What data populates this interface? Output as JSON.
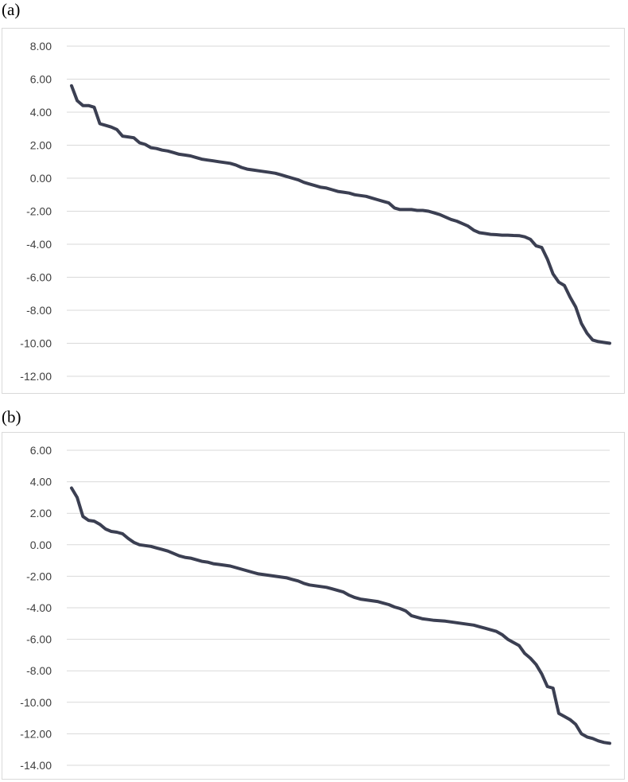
{
  "chart_data": [
    {
      "panel_label": "(a)",
      "type": "line",
      "yticks": [
        "8.00",
        "6.00",
        "4.00",
        "2.00",
        "0.00",
        "-2.00",
        "-4.00",
        "-6.00",
        "-8.00",
        "-10.00",
        "-12.00"
      ],
      "ylim": [
        -12,
        8
      ],
      "grid": true,
      "series": [
        {
          "color": "#3b3f52",
          "values": [
            5.6,
            4.7,
            4.4,
            4.4,
            4.3,
            3.3,
            3.2,
            3.1,
            2.95,
            2.55,
            2.5,
            2.45,
            2.15,
            2.05,
            1.85,
            1.8,
            1.7,
            1.65,
            1.55,
            1.45,
            1.4,
            1.35,
            1.25,
            1.15,
            1.1,
            1.05,
            1.0,
            0.95,
            0.9,
            0.8,
            0.65,
            0.55,
            0.5,
            0.45,
            0.4,
            0.35,
            0.3,
            0.2,
            0.1,
            0.0,
            -0.1,
            -0.25,
            -0.35,
            -0.45,
            -0.55,
            -0.6,
            -0.7,
            -0.8,
            -0.85,
            -0.9,
            -1.0,
            -1.05,
            -1.1,
            -1.2,
            -1.3,
            -1.4,
            -1.5,
            -1.8,
            -1.9,
            -1.9,
            -1.9,
            -1.95,
            -1.95,
            -2.0,
            -2.1,
            -2.2,
            -2.35,
            -2.5,
            -2.6,
            -2.75,
            -2.9,
            -3.15,
            -3.3,
            -3.35,
            -3.4,
            -3.42,
            -3.45,
            -3.45,
            -3.47,
            -3.48,
            -3.55,
            -3.7,
            -4.1,
            -4.2,
            -4.9,
            -5.8,
            -6.3,
            -6.5,
            -7.2,
            -7.8,
            -8.8,
            -9.4,
            -9.8,
            -9.9,
            -9.95,
            -10.0
          ]
        }
      ]
    },
    {
      "panel_label": "(b)",
      "type": "line",
      "yticks": [
        "6.00",
        "4.00",
        "2.00",
        "0.00",
        "-2.00",
        "-4.00",
        "-6.00",
        "-8.00",
        "-10.00",
        "-12.00",
        "-14.00"
      ],
      "ylim": [
        -14,
        6
      ],
      "grid": true,
      "series": [
        {
          "color": "#3b3f52",
          "values": [
            3.6,
            3.0,
            1.8,
            1.55,
            1.5,
            1.3,
            1.0,
            0.85,
            0.8,
            0.7,
            0.4,
            0.15,
            0.0,
            -0.05,
            -0.1,
            -0.2,
            -0.3,
            -0.4,
            -0.55,
            -0.7,
            -0.8,
            -0.85,
            -0.95,
            -1.05,
            -1.1,
            -1.2,
            -1.25,
            -1.3,
            -1.35,
            -1.45,
            -1.55,
            -1.65,
            -1.75,
            -1.85,
            -1.9,
            -1.95,
            -2.0,
            -2.05,
            -2.1,
            -2.2,
            -2.3,
            -2.45,
            -2.55,
            -2.6,
            -2.65,
            -2.7,
            -2.8,
            -2.9,
            -3.0,
            -3.2,
            -3.35,
            -3.45,
            -3.5,
            -3.55,
            -3.6,
            -3.7,
            -3.8,
            -3.95,
            -4.05,
            -4.2,
            -4.5,
            -4.6,
            -4.7,
            -4.75,
            -4.8,
            -4.82,
            -4.85,
            -4.9,
            -4.95,
            -5.0,
            -5.05,
            -5.1,
            -5.2,
            -5.3,
            -5.4,
            -5.5,
            -5.7,
            -6.0,
            -6.2,
            -6.4,
            -6.9,
            -7.2,
            -7.6,
            -8.2,
            -9.0,
            -9.1,
            -10.7,
            -10.9,
            -11.1,
            -11.4,
            -12.0,
            -12.2,
            -12.3,
            -12.45,
            -12.55,
            -12.6
          ]
        }
      ]
    }
  ]
}
